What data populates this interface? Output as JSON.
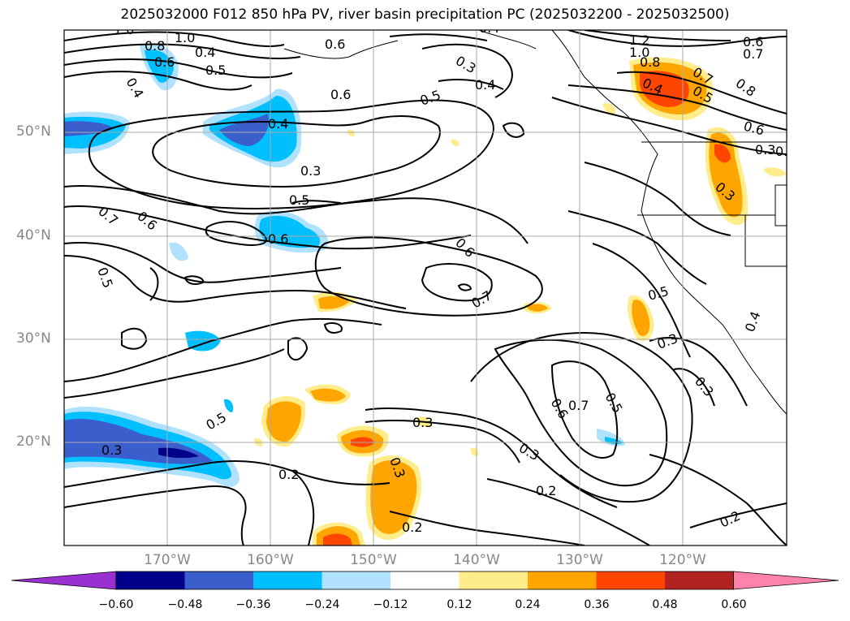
{
  "title": "2025032000 F012 850 hPa PV, river basin precipitation PC (2025032200 - 2025032500)",
  "lon_labels": [
    "170°W",
    "160°W",
    "150°W",
    "140°W",
    "130°W",
    "120°W"
  ],
  "lat_labels": [
    "50°N",
    "40°N",
    "30°N",
    "20°N"
  ],
  "colorbar": {
    "colors": [
      "#9b30d0",
      "#00008b",
      "#3a5fcd",
      "#00bfff",
      "#b0e2ff",
      "#ffffff",
      "#ffec8b",
      "#ffa500",
      "#ff4500",
      "#b22222",
      "#ff82ab"
    ],
    "ticks": [
      "−0.60",
      "−0.48",
      "−0.36",
      "−0.24",
      "−0.12",
      "0.12",
      "0.24",
      "0.36",
      "0.48",
      "0.60"
    ]
  },
  "contour_labels": [
    "1.0",
    "1.0",
    "0.8",
    "0.6",
    "0.5",
    "0.4",
    "0.7",
    "0.6",
    "0.5",
    "0.4",
    "0.3",
    "0.6",
    "0.4",
    "0.3",
    "0.5",
    "0.6",
    "0.5",
    "1.2",
    "1.0",
    "0.8",
    "0.4",
    "0.7",
    "0.5",
    "0.8",
    "0.6",
    "0.6",
    "0.7",
    "0.3",
    "0.6",
    "0.7",
    "0.5",
    "0.3",
    "0.5",
    "0.3",
    "0.6",
    "0.7",
    "0.5",
    "0.3",
    "0.2",
    "0.3",
    "0.3",
    "0.2",
    "0.2",
    "0.2",
    "0.3",
    "0.3",
    "0.2",
    "0.4",
    "0.6",
    "0.4",
    "0.4"
  ]
}
